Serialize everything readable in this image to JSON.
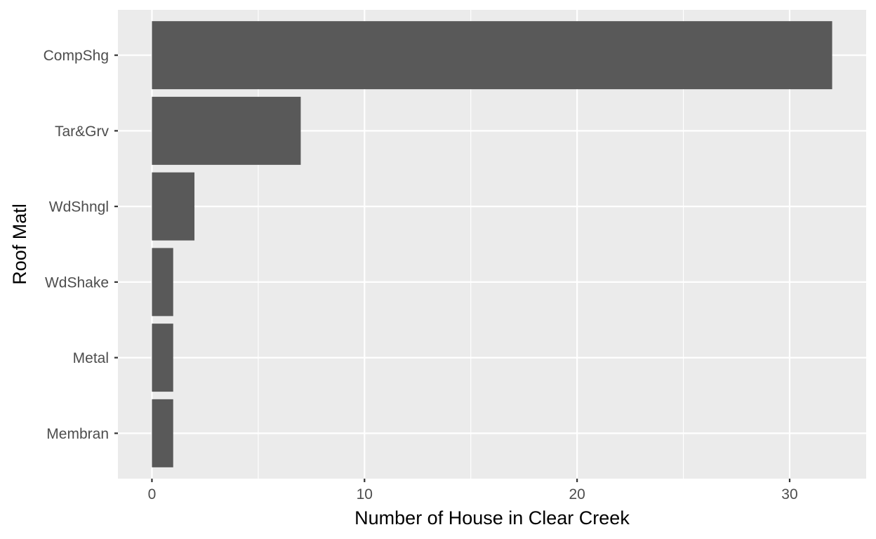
{
  "chart_data": {
    "type": "bar",
    "orientation": "horizontal",
    "categories": [
      "Membran",
      "Metal",
      "WdShake",
      "WdShngl",
      "Tar&Grv",
      "CompShg"
    ],
    "values": [
      1,
      1,
      1,
      2,
      7,
      32
    ],
    "xlabel": "Number of House in Clear Creek",
    "ylabel": "Roof Matl",
    "xlim": [
      -1.6,
      33.6
    ],
    "x_major_ticks": [
      0,
      10,
      20,
      30
    ],
    "x_minor_ticks": [
      5,
      15,
      25
    ],
    "grid": true,
    "colors": {
      "bar": "#595959",
      "panel": "#ebebeb",
      "grid": "#ffffff",
      "tick": "#333333"
    }
  }
}
